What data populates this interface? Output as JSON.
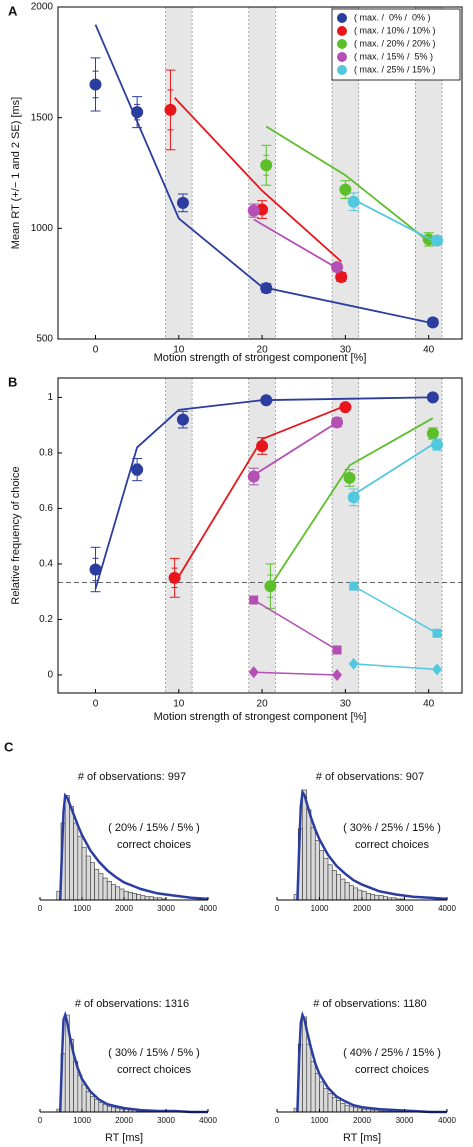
{
  "chart_data": [
    {
      "type": "scatter",
      "panel": "A",
      "xlabel": "Motion strength of strongest component [%]",
      "ylabel": "Mean RT (+/− 1 and 2 SE) [ms]",
      "xlim": [
        -4.5,
        44
      ],
      "xticks": [
        0,
        10,
        20,
        30,
        40
      ],
      "ylim": [
        500,
        2000
      ],
      "yticks": [
        500,
        1000,
        1500,
        2000
      ],
      "bands": [
        10,
        20,
        30,
        40
      ],
      "legend": "upper right",
      "series": [
        {
          "name": "( max. /  0% /  0% )",
          "color": "#2b3d9e",
          "x": [
            0,
            5,
            10.5,
            20.5,
            40.5
          ],
          "values": [
            1650,
            1525,
            1115,
            730,
            575
          ],
          "errors": [
            60,
            35,
            20,
            10,
            8
          ],
          "line_x": [
            0,
            10,
            20,
            40
          ],
          "line_values": [
            1920,
            1045,
            735,
            575
          ]
        },
        {
          "name": "( max. / 10% / 10% )",
          "color": "#e8161b",
          "x": [
            9,
            20,
            29.5
          ],
          "values": [
            1535,
            1085,
            780
          ],
          "errors": [
            90,
            20,
            10
          ],
          "line_x": [
            9.5,
            20,
            29.5
          ],
          "line_values": [
            1590,
            1170,
            850
          ]
        },
        {
          "name": "( max. / 20% / 20% )",
          "color": "#5cbf2a",
          "x": [
            20.5,
            30,
            40
          ],
          "values": [
            1285,
            1175,
            950
          ],
          "errors": [
            45,
            20,
            15
          ],
          "line_x": [
            20.5,
            30,
            40
          ],
          "line_values": [
            1460,
            1240,
            940
          ]
        },
        {
          "name": "( max. / 15% /  5% )",
          "color": "#b44fb4",
          "x": [
            19,
            29
          ],
          "values": [
            1080,
            825
          ],
          "errors": [
            15,
            8
          ],
          "line_x": [
            19,
            29
          ],
          "line_values": [
            1040,
            820
          ]
        },
        {
          "name": "( max. / 25% / 15% )",
          "color": "#52c8de",
          "x": [
            31,
            41
          ],
          "values": [
            1120,
            945
          ],
          "errors": [
            20,
            10
          ],
          "line_x": [
            31,
            41
          ],
          "line_values": [
            1130,
            935
          ]
        }
      ]
    },
    {
      "type": "scatter",
      "panel": "B",
      "xlabel": "Motion strength of strongest component [%]",
      "ylabel": "Relative frequency of choice",
      "xlim": [
        -4.5,
        44
      ],
      "xticks": [
        0,
        10,
        20,
        30,
        40
      ],
      "ylim": [
        -0.065,
        1.07
      ],
      "yticks": [
        0,
        0.2,
        0.4,
        0.6,
        0.8,
        1
      ],
      "bands": [
        10,
        20,
        30,
        40
      ],
      "reference_line": 0.333,
      "series": [
        {
          "color": "#2b3d9e",
          "x": [
            0,
            5,
            10.5,
            20.5,
            40.5
          ],
          "values": [
            0.38,
            0.74,
            0.92,
            0.99,
            1.0
          ],
          "errors": [
            0.04,
            0.02,
            0.015,
            0.005,
            0.003
          ],
          "line_x": [
            0,
            5,
            10,
            20,
            40
          ],
          "line_values": [
            0.31,
            0.82,
            0.955,
            0.99,
            1.0
          ]
        },
        {
          "color": "#e8161b",
          "x": [
            9.5,
            20,
            30
          ],
          "values": [
            0.35,
            0.825,
            0.965
          ],
          "errors": [
            0.035,
            0.015,
            0.005
          ],
          "line_x": [
            9.5,
            20,
            30
          ],
          "line_values": [
            0.33,
            0.85,
            0.97
          ]
        },
        {
          "color": "#5cbf2a",
          "x": [
            21,
            30.5,
            40.5
          ],
          "values": [
            0.32,
            0.71,
            0.87
          ],
          "errors": [
            0.04,
            0.015,
            0.01
          ],
          "line_x": [
            21,
            30.5,
            40.5
          ],
          "line_values": [
            0.32,
            0.755,
            0.925
          ]
        },
        {
          "color": "#b44fb4",
          "x": [
            19,
            29
          ],
          "values": [
            0.715,
            0.91
          ],
          "errors": [
            0.015,
            0.008
          ],
          "line_x": [
            19,
            29
          ],
          "line_values": [
            0.72,
            0.91
          ],
          "square_x": [
            19,
            29
          ],
          "square_values": [
            0.27,
            0.09
          ],
          "diamond_x": [
            19,
            29
          ],
          "diamond_values": [
            0.01,
            0.0
          ]
        },
        {
          "color": "#52c8de",
          "x": [
            31,
            41
          ],
          "values": [
            0.64,
            0.83
          ],
          "errors": [
            0.015,
            0.01
          ],
          "line_x": [
            31,
            41
          ],
          "line_values": [
            0.65,
            0.84
          ],
          "square_x": [
            31,
            41
          ],
          "square_values": [
            0.32,
            0.15
          ],
          "diamond_x": [
            31,
            41
          ],
          "diamond_values": [
            0.04,
            0.02
          ]
        }
      ]
    },
    {
      "type": "histogram",
      "panel": "C",
      "title": "# of observations: 997",
      "annotations": [
        "( 20% / 15% / 5% )",
        "correct choices"
      ],
      "xlim": [
        0,
        4000
      ],
      "xticks": [
        0,
        1000,
        2000,
        3000,
        4000
      ],
      "ylim": [
        0,
        100
      ],
      "color": "#2b3d9e",
      "bins": [
        400,
        500,
        600,
        700,
        800,
        900,
        1000,
        1100,
        1200,
        1300,
        1400,
        1500,
        1600,
        1700,
        1800,
        1900,
        2000,
        2100,
        2200,
        2300,
        2400,
        2500,
        2600,
        2700,
        2800,
        2900,
        3000
      ],
      "counts": [
        8,
        70,
        95,
        85,
        70,
        58,
        48,
        40,
        34,
        28,
        24,
        20,
        17,
        14,
        12,
        10,
        8,
        7,
        6,
        5,
        4,
        3,
        3,
        2,
        2,
        1
      ],
      "curve_x": [
        480,
        520,
        560,
        600,
        650,
        700,
        800,
        900,
        1000,
        1200,
        1400,
        1600,
        1800,
        2000,
        2400,
        2800,
        3200,
        3600,
        4000
      ],
      "curve_values": [
        0,
        40,
        80,
        95,
        93,
        88,
        78,
        68,
        59,
        45,
        35,
        27,
        21,
        16,
        10,
        6,
        4,
        2,
        1
      ]
    },
    {
      "type": "histogram",
      "title": "# of observations: 907",
      "annotations": [
        "( 30% / 25% / 15% )",
        "correct choices"
      ],
      "xlim": [
        0,
        4000
      ],
      "xticks": [
        0,
        1000,
        2000,
        3000,
        4000
      ],
      "ylim": [
        0,
        100
      ],
      "color": "#2b3d9e",
      "bins": [
        400,
        500,
        600,
        700,
        800,
        900,
        1000,
        1100,
        1200,
        1300,
        1400,
        1500,
        1600,
        1700,
        1800,
        1900,
        2000,
        2100,
        2200,
        2300,
        2400,
        2500,
        2600,
        2700,
        2800,
        2900,
        3000
      ],
      "counts": [
        5,
        65,
        100,
        82,
        66,
        54,
        45,
        38,
        32,
        27,
        23,
        19,
        16,
        13,
        11,
        9,
        8,
        6,
        5,
        4,
        4,
        3,
        2,
        2,
        1,
        1
      ],
      "curve_x": [
        480,
        520,
        560,
        600,
        650,
        700,
        800,
        900,
        1000,
        1200,
        1400,
        1600,
        1800,
        2000,
        2400,
        2800,
        3200,
        3600,
        4000
      ],
      "curve_values": [
        0,
        45,
        85,
        98,
        95,
        88,
        75,
        64,
        55,
        41,
        31,
        24,
        18,
        14,
        8,
        5,
        3,
        2,
        1
      ]
    },
    {
      "type": "histogram",
      "title": "# of observations: 1316",
      "annotations": [
        "( 30% / 15% / 5% )",
        "correct choices"
      ],
      "xlim": [
        0,
        4000
      ],
      "xticks": [
        0,
        1000,
        2000,
        3000,
        4000
      ],
      "ylim": [
        0,
        100
      ],
      "color": "#2b3d9e",
      "xlabel": "RT [ms]",
      "bins": [
        400,
        500,
        600,
        700,
        800,
        900,
        1000,
        1100,
        1200,
        1300,
        1400,
        1500,
        1600,
        1700,
        1800,
        1900,
        2000,
        2100,
        2200,
        2300,
        2400,
        2500,
        2600,
        2700,
        2800,
        2900,
        3000
      ],
      "counts": [
        3,
        60,
        100,
        75,
        52,
        38,
        28,
        21,
        16,
        13,
        10,
        8,
        6,
        5,
        4,
        3,
        3,
        2,
        2,
        1,
        1,
        1,
        1,
        0,
        0,
        0
      ],
      "curve_x": [
        480,
        520,
        560,
        600,
        650,
        700,
        800,
        900,
        1000,
        1200,
        1400,
        1600,
        1800,
        2000,
        2400,
        2800,
        3200,
        3600,
        4000
      ],
      "curve_values": [
        0,
        50,
        95,
        100,
        92,
        80,
        60,
        45,
        34,
        21,
        13,
        8,
        6,
        4,
        2,
        1,
        1,
        0,
        0
      ]
    },
    {
      "type": "histogram",
      "title": "# of observations: 1180",
      "annotations": [
        "( 40% / 25% / 15% )",
        "correct choices"
      ],
      "xlim": [
        0,
        4000
      ],
      "xticks": [
        0,
        1000,
        2000,
        3000,
        4000
      ],
      "ylim": [
        0,
        100
      ],
      "color": "#2b3d9e",
      "xlabel": "RT [ms]",
      "bins": [
        400,
        500,
        600,
        700,
        800,
        900,
        1000,
        1100,
        1200,
        1300,
        1400,
        1500,
        1600,
        1700,
        1800,
        1900,
        2000,
        2100,
        2200,
        2300,
        2400,
        2500,
        2600,
        2700,
        2800,
        2900,
        3000
      ],
      "counts": [
        4,
        70,
        98,
        70,
        52,
        40,
        31,
        24,
        19,
        15,
        12,
        9,
        7,
        6,
        5,
        4,
        3,
        3,
        2,
        2,
        1,
        1,
        1,
        1,
        0,
        0
      ],
      "curve_x": [
        480,
        520,
        560,
        600,
        650,
        700,
        800,
        900,
        1000,
        1200,
        1400,
        1600,
        1800,
        2000,
        2400,
        2800,
        3200,
        3600,
        4000
      ],
      "curve_values": [
        0,
        55,
        92,
        100,
        95,
        84,
        66,
        50,
        39,
        25,
        16,
        11,
        7,
        5,
        3,
        2,
        1,
        0,
        0
      ]
    }
  ]
}
